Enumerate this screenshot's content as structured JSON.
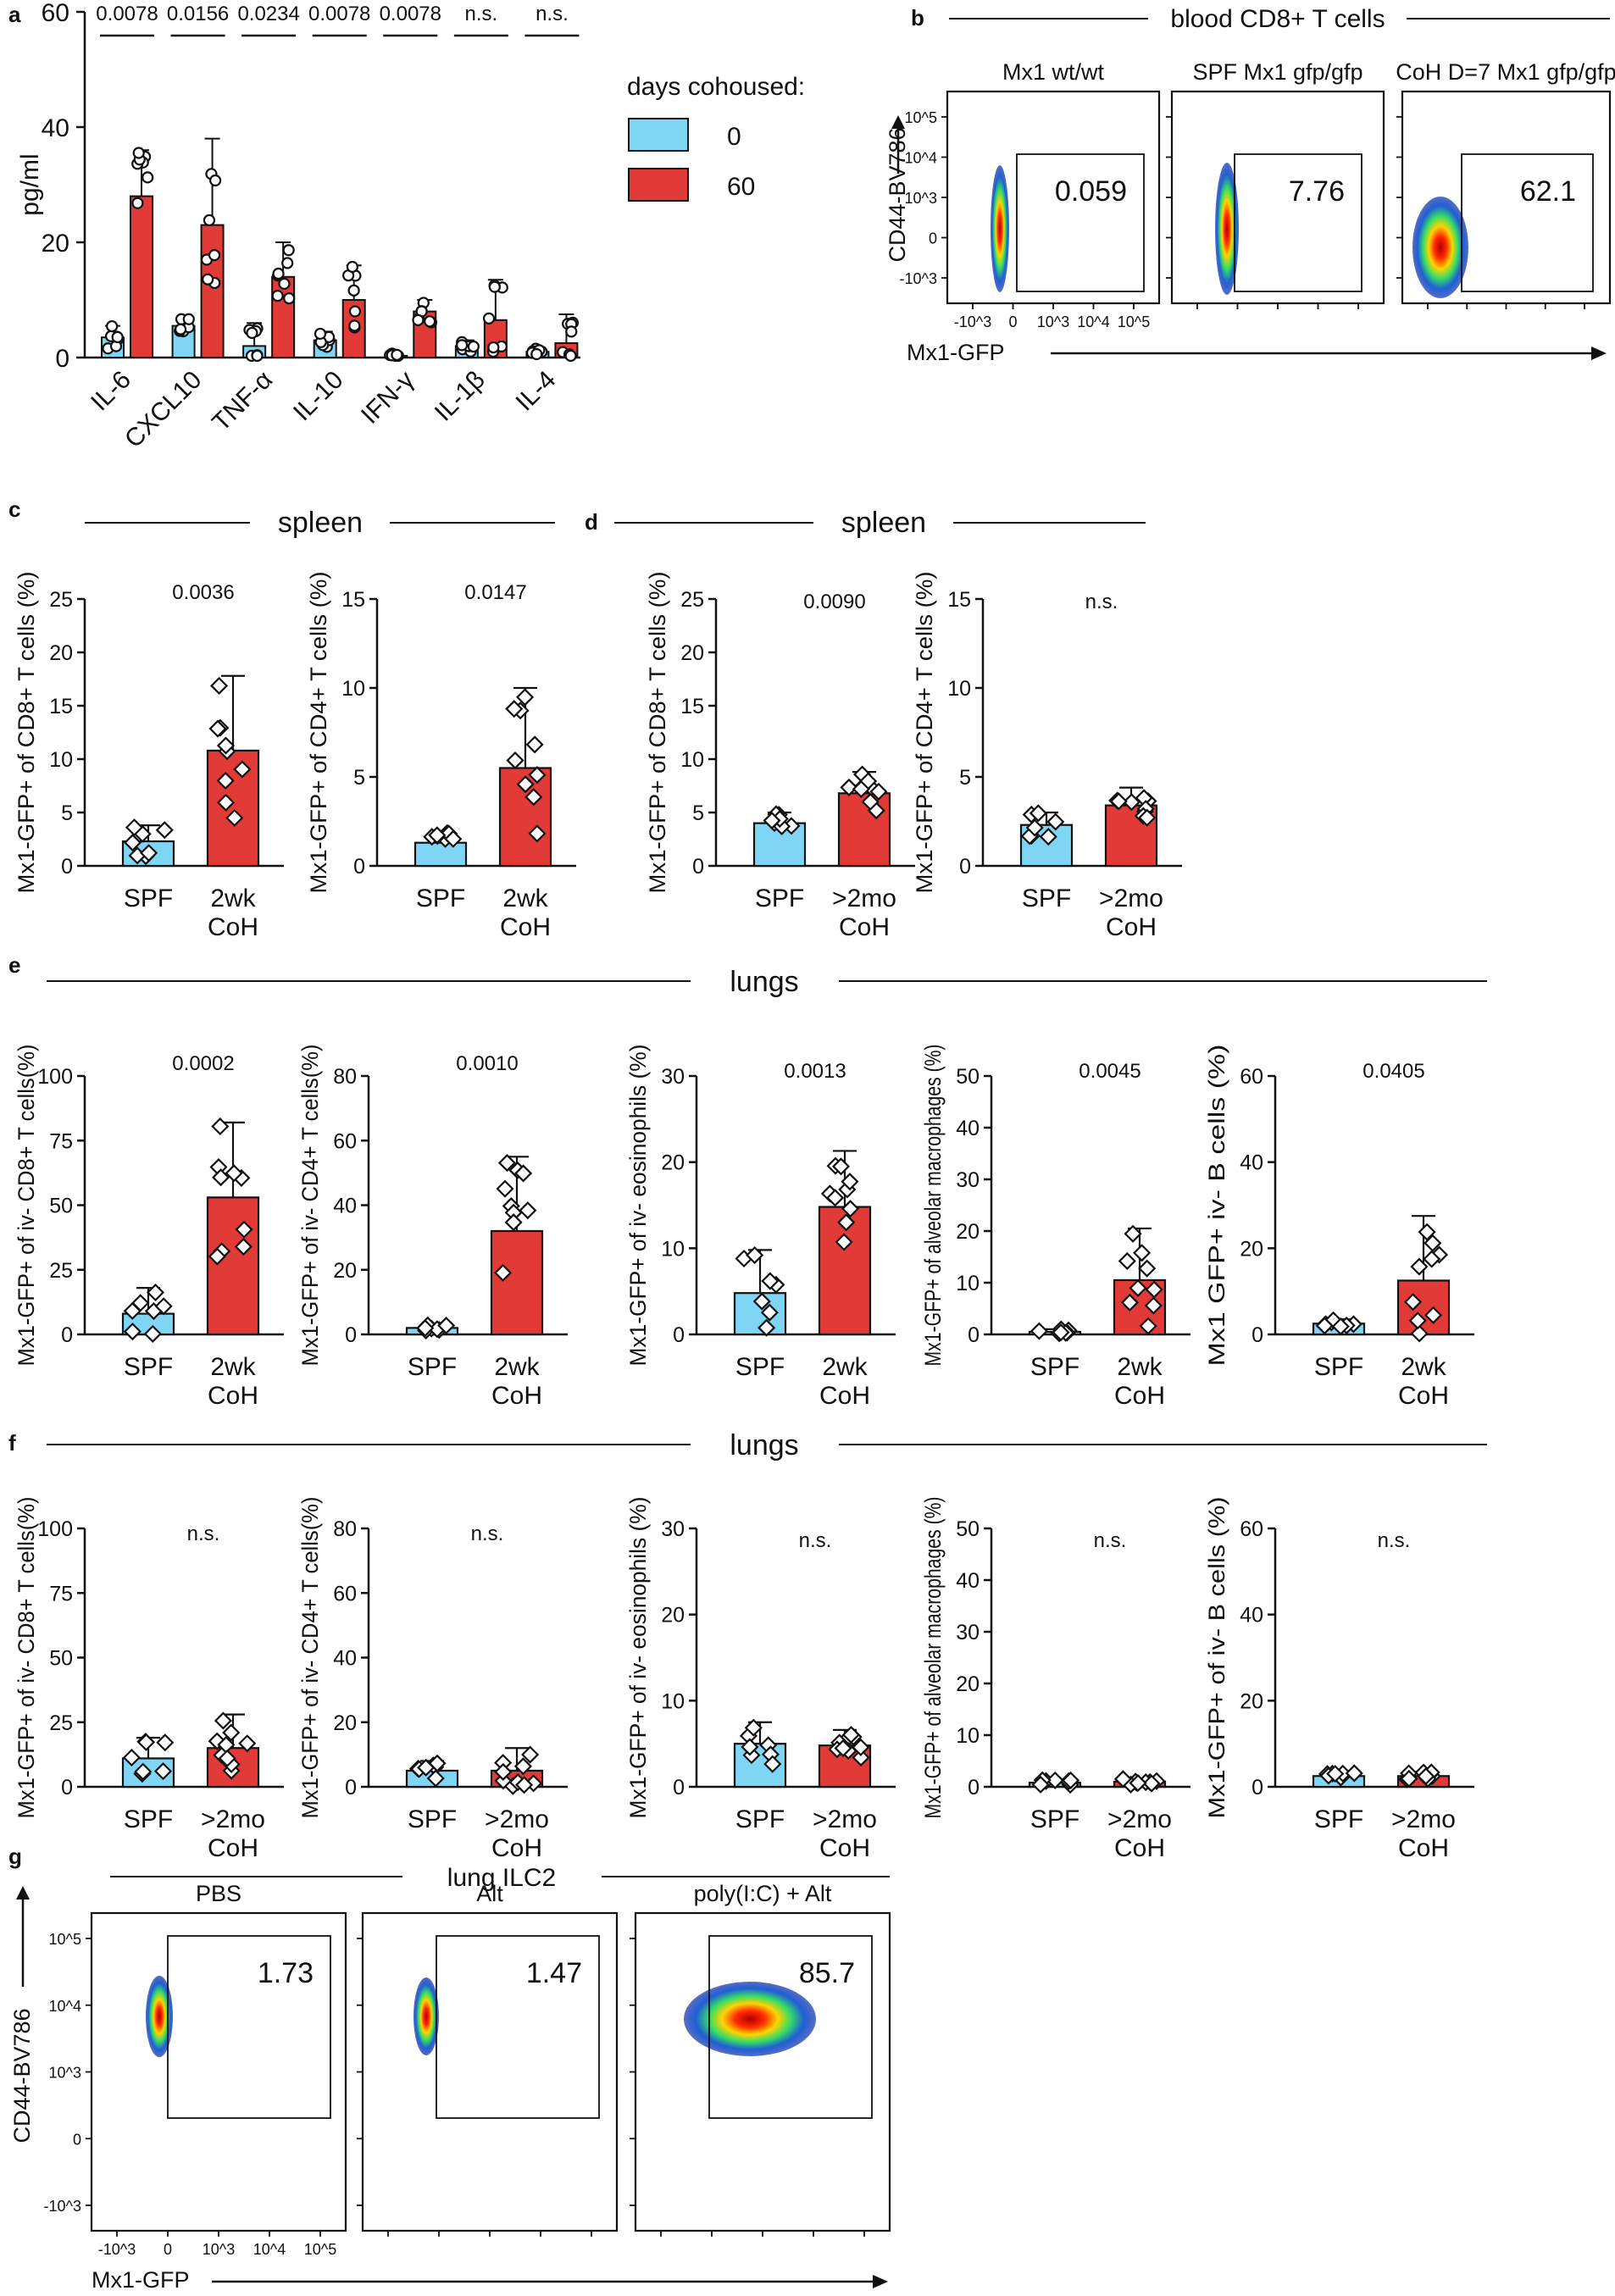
{
  "colors": {
    "spf": "#7FD6F4",
    "coh": "#E23A36",
    "axis": "#111111"
  },
  "panels": {
    "a": "a",
    "b": "b",
    "c": "c",
    "d": "d",
    "e": "e",
    "f": "f",
    "g": "g"
  },
  "sections": {
    "b": "blood CD8+ T cells",
    "c": "spleen",
    "d": "spleen",
    "e": "lungs",
    "f": "lungs",
    "g": "lung ILC2"
  },
  "chart_data": [
    {
      "id": "a",
      "type": "bar",
      "ylabel": "pg/ml",
      "ylim": [
        0,
        60
      ],
      "yticks": [
        "0",
        "20",
        "40",
        "60"
      ],
      "categories": [
        "IL-6",
        "CXCL10",
        "TNF-α",
        "IL-10",
        "IFN-γ",
        "IL-1β",
        "IL-4"
      ],
      "legend": {
        "title": "days cohoused:",
        "placement": "right",
        "entries": [
          "0",
          "60"
        ]
      },
      "series": [
        {
          "name": "0",
          "values": [
            3.5,
            5.5,
            2,
            3,
            0.3,
            2,
            1
          ],
          "err": [
            2,
            1.5,
            4,
            1.5,
            0.3,
            1,
            0.8
          ]
        },
        {
          "name": "60",
          "values": [
            28,
            23,
            14,
            10,
            8,
            6.5,
            2.5
          ],
          "err": [
            8,
            15,
            6,
            6,
            2,
            7,
            5
          ]
        }
      ],
      "pvalues": [
        "0.0078",
        "0.0156",
        "0.0234",
        "0.0078",
        "0.0078",
        "n.s.",
        "n.s."
      ]
    },
    {
      "id": "c1",
      "type": "bar",
      "ylabel": "Mx1-GFP+ of CD8+ T cells (%)",
      "ylim": [
        0,
        25
      ],
      "yticks": [
        "0",
        "5",
        "10",
        "15",
        "20",
        "25"
      ],
      "categories": [
        "SPF",
        "2wk CoH"
      ],
      "values": [
        2.3,
        10.8
      ],
      "err": [
        1.5,
        7
      ],
      "pvalue": "0.0036"
    },
    {
      "id": "c2",
      "type": "bar",
      "ylabel": "Mx1-GFP+ of CD4+ T cells (%)",
      "ylim": [
        0,
        15
      ],
      "yticks": [
        "0",
        "5",
        "10",
        "15"
      ],
      "categories": [
        "SPF",
        "2wk CoH"
      ],
      "values": [
        1.3,
        5.5
      ],
      "err": [
        0.6,
        4.5
      ],
      "pvalue": "0.0147"
    },
    {
      "id": "d1",
      "type": "bar",
      "ylabel": "Mx1-GFP+ of CD8+ T cells (%)",
      "ylim": [
        0,
        25
      ],
      "yticks": [
        "0",
        "5",
        "10",
        "15",
        "20",
        "25"
      ],
      "categories": [
        "SPF",
        ">2mo CoH"
      ],
      "values": [
        4,
        6.8
      ],
      "err": [
        1,
        2
      ],
      "pvalue": "0.0090"
    },
    {
      "id": "d2",
      "type": "bar",
      "ylabel": "Mx1-GFP+ of CD4+ T cells (%)",
      "ylim": [
        0,
        15
      ],
      "yticks": [
        "0",
        "5",
        "10",
        "15"
      ],
      "categories": [
        "SPF",
        ">2mo CoH"
      ],
      "values": [
        2.3,
        3.4
      ],
      "err": [
        0.7,
        1
      ],
      "pvalue": "n.s."
    },
    {
      "id": "e1",
      "type": "bar",
      "ylabel": "Mx1-GFP+ of iv- CD8+ T cells(%)",
      "ylim": [
        0,
        100
      ],
      "yticks": [
        "0",
        "25",
        "50",
        "75",
        "100"
      ],
      "categories": [
        "SPF",
        "2wk CoH"
      ],
      "values": [
        8,
        53
      ],
      "err": [
        10,
        29
      ],
      "pvalue": "0.0002"
    },
    {
      "id": "e2",
      "type": "bar",
      "ylabel": "Mx1-GFP+ of iv- CD4+ T cells(%)",
      "ylim": [
        0,
        80
      ],
      "yticks": [
        "0",
        "20",
        "40",
        "60",
        "80"
      ],
      "categories": [
        "SPF",
        "2wk CoH"
      ],
      "values": [
        2,
        32
      ],
      "err": [
        1,
        23
      ],
      "pvalue": "0.0010"
    },
    {
      "id": "e3",
      "type": "bar",
      "ylabel": "Mx1-GFP+ of iv- eosinophils (%)",
      "ylim": [
        0,
        30
      ],
      "yticks": [
        "0",
        "10",
        "20",
        "30"
      ],
      "categories": [
        "SPF",
        "2wk CoH"
      ],
      "values": [
        4.8,
        14.8
      ],
      "err": [
        5,
        6.5
      ],
      "pvalue": "0.0013"
    },
    {
      "id": "e4",
      "type": "bar",
      "ylabel": "Mx1-GFP+ of alveolar macrophages (%)",
      "ylim": [
        0,
        50
      ],
      "yticks": [
        "0",
        "10",
        "20",
        "30",
        "40",
        "50"
      ],
      "categories": [
        "SPF",
        "2wk CoH"
      ],
      "values": [
        0.5,
        10.5
      ],
      "err": [
        0.5,
        10
      ],
      "pvalue": "0.0045"
    },
    {
      "id": "e5",
      "type": "bar",
      "ylabel": "Mx1 GFP+ iv- B cells (%)",
      "ylim": [
        0,
        60
      ],
      "yticks": [
        "0",
        "20",
        "40",
        "60"
      ],
      "categories": [
        "SPF",
        "2wk CoH"
      ],
      "values": [
        2.5,
        12.5
      ],
      "err": [
        1,
        15
      ],
      "pvalue": "0.0405"
    },
    {
      "id": "f1",
      "type": "bar",
      "ylabel": "Mx1-GFP+ of iv- CD8+ T cells(%)",
      "ylim": [
        0,
        100
      ],
      "yticks": [
        "0",
        "25",
        "50",
        "75",
        "100"
      ],
      "categories": [
        "SPF",
        ">2mo CoH"
      ],
      "values": [
        11,
        15
      ],
      "err": [
        8,
        13
      ],
      "pvalue": "n.s."
    },
    {
      "id": "f2",
      "type": "bar",
      "ylabel": "Mx1-GFP+ of iv- CD4+ T cells(%)",
      "ylim": [
        0,
        80
      ],
      "yticks": [
        "0",
        "20",
        "40",
        "60",
        "80"
      ],
      "categories": [
        "SPF",
        ">2mo CoH"
      ],
      "values": [
        5,
        5
      ],
      "err": [
        3,
        7
      ],
      "pvalue": "n.s."
    },
    {
      "id": "f3",
      "type": "bar",
      "ylabel": "Mx1-GFP+ of iv- eosinophils (%)",
      "ylim": [
        0,
        30
      ],
      "yticks": [
        "0",
        "10",
        "20",
        "30"
      ],
      "categories": [
        "SPF",
        ">2mo CoH"
      ],
      "values": [
        5,
        4.8
      ],
      "err": [
        2.5,
        1.8
      ],
      "pvalue": "n.s."
    },
    {
      "id": "f4",
      "type": "bar",
      "ylabel": "Mx1-GFP+ of alveolar macrophages (%)",
      "ylim": [
        0,
        50
      ],
      "yticks": [
        "0",
        "10",
        "20",
        "30",
        "40",
        "50"
      ],
      "categories": [
        "SPF",
        ">2mo CoH"
      ],
      "values": [
        0.8,
        1
      ],
      "err": [
        0.4,
        0.5
      ],
      "pvalue": "n.s."
    },
    {
      "id": "f5",
      "type": "bar",
      "ylabel": "Mx1-GFP+ of iv- B cells (%)",
      "ylim": [
        0,
        60
      ],
      "yticks": [
        "0",
        "20",
        "40",
        "60"
      ],
      "categories": [
        "SPF",
        ">2mo CoH"
      ],
      "values": [
        2.5,
        2.5
      ],
      "err": [
        0.8,
        1
      ],
      "pvalue": "n.s."
    }
  ],
  "flow_b": {
    "ylabel": "CD44-BV786",
    "xlabel": "Mx1-GFP",
    "yticks": [
      "10^5",
      "10^4",
      "10^3",
      "0",
      "-10^3"
    ],
    "xticks": [
      "-10^3",
      "0",
      "10^3",
      "10^4",
      "10^5"
    ],
    "plots": [
      {
        "title": "Mx1 wt/wt",
        "gate": "0.059"
      },
      {
        "title": "SPF Mx1 gfp/gfp",
        "gate": "7.76"
      },
      {
        "title": "CoH D=7 Mx1 gfp/gfp",
        "gate": "62.1"
      }
    ]
  },
  "flow_g": {
    "ylabel": "CD44-BV786",
    "xlabel": "Mx1-GFP",
    "yticks": [
      "10^5",
      "10^4",
      "10^3",
      "0",
      "-10^3"
    ],
    "xticks": [
      "-10^3",
      "0",
      "10^3",
      "10^4",
      "10^5"
    ],
    "plots": [
      {
        "title": "PBS",
        "gate": "1.73"
      },
      {
        "title": "Alt",
        "gate": "1.47"
      },
      {
        "title": "poly(I:C) + Alt",
        "gate": "85.7"
      }
    ]
  }
}
